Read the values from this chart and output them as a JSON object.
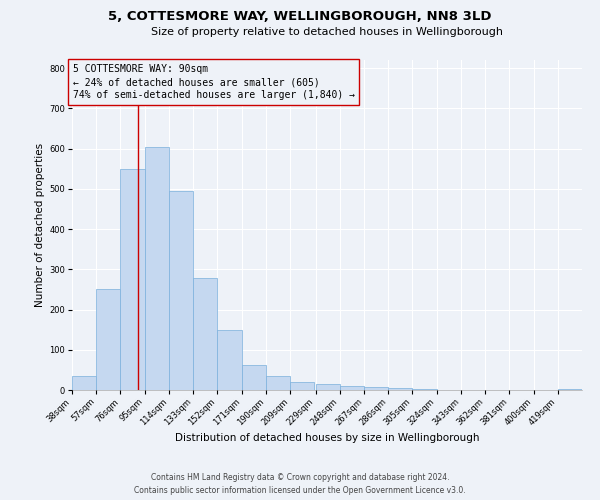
{
  "title": "5, COTTESMORE WAY, WELLINGBOROUGH, NN8 3LD",
  "subtitle": "Size of property relative to detached houses in Wellingborough",
  "xlabel": "Distribution of detached houses by size in Wellingborough",
  "ylabel": "Number of detached properties",
  "bin_labels": [
    "38sqm",
    "57sqm",
    "76sqm",
    "95sqm",
    "114sqm",
    "133sqm",
    "152sqm",
    "171sqm",
    "190sqm",
    "209sqm",
    "229sqm",
    "248sqm",
    "267sqm",
    "286sqm",
    "305sqm",
    "324sqm",
    "343sqm",
    "362sqm",
    "381sqm",
    "400sqm",
    "419sqm"
  ],
  "bin_edges": [
    38,
    57,
    76,
    95,
    114,
    133,
    152,
    171,
    190,
    209,
    229,
    248,
    267,
    286,
    305,
    324,
    343,
    362,
    381,
    400,
    419
  ],
  "bar_heights": [
    35,
    250,
    550,
    605,
    495,
    278,
    148,
    62,
    35,
    20,
    15,
    10,
    8,
    5,
    2,
    1,
    0,
    0,
    0,
    0,
    2
  ],
  "bar_color": "#c5d8f0",
  "bar_edgecolor": "#7ab0dc",
  "vline_x": 90,
  "vline_color": "#cc0000",
  "annotation_title": "5 COTTESMORE WAY: 90sqm",
  "annotation_line1": "← 24% of detached houses are smaller (605)",
  "annotation_line2": "74% of semi-detached houses are larger (1,840) →",
  "annotation_box_edgecolor": "#cc0000",
  "ylim": [
    0,
    820
  ],
  "yticks": [
    0,
    100,
    200,
    300,
    400,
    500,
    600,
    700,
    800
  ],
  "footer_line1": "Contains HM Land Registry data © Crown copyright and database right 2024.",
  "footer_line2": "Contains public sector information licensed under the Open Government Licence v3.0.",
  "background_color": "#eef2f8",
  "plot_bg_color": "#eef2f8",
  "grid_color": "#ffffff",
  "title_fontsize": 9.5,
  "subtitle_fontsize": 8,
  "axis_label_fontsize": 7.5,
  "tick_fontsize": 6,
  "annotation_fontsize": 7,
  "footer_fontsize": 5.5
}
